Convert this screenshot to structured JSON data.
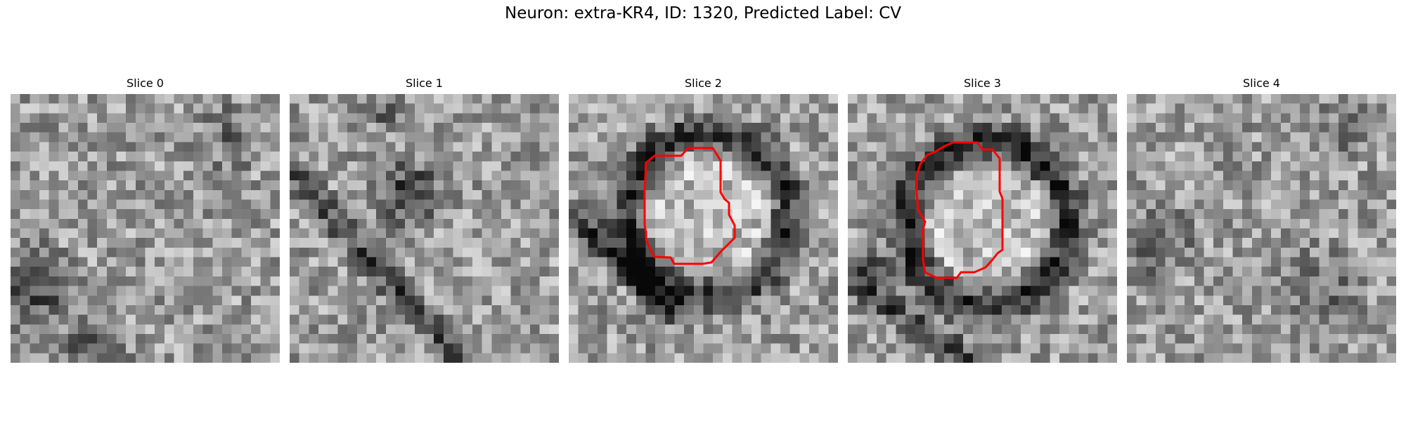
{
  "figure": {
    "title": "Neuron: extra-KR4, ID: 1320, Predicted Label: CV"
  },
  "panels": [
    {
      "title": "Slice 0",
      "has_contour": false
    },
    {
      "title": "Slice 1",
      "has_contour": false
    },
    {
      "title": "Slice 2",
      "has_contour": true
    },
    {
      "title": "Slice 3",
      "has_contour": true
    },
    {
      "title": "Slice 4",
      "has_contour": false
    }
  ],
  "colors": {
    "contour": "#ff0000",
    "background": "#ffffff"
  },
  "image": {
    "colormap": "grayscale",
    "grid_size": 28
  }
}
